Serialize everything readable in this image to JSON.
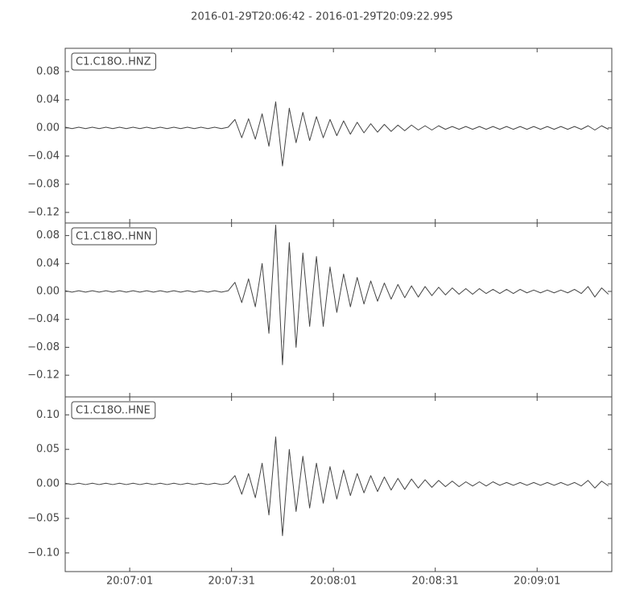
{
  "title": "2016-01-29T20:06:42  -  2016-01-29T20:09:22.995",
  "chart_data": [
    {
      "type": "line",
      "xlim": [
        "20:06:42",
        "20:09:22.995"
      ],
      "ylim": [
        -0.135,
        0.113
      ],
      "yticks": [
        0.08,
        0.04,
        {
          "value": 0,
          "label": "0.00"
        },
        {
          "value": -0.04,
          "label": "−0.04"
        },
        {
          "value": -0.08,
          "label": "−0.08"
        },
        {
          "value": -0.12,
          "label": "−0.12"
        }
      ],
      "x": [
        "20:06:42",
        "20:06:44",
        "20:06:46",
        "20:06:48",
        "20:06:50",
        "20:06:52",
        "20:06:54",
        "20:06:56",
        "20:06:58",
        "20:07:00",
        "20:07:02",
        "20:07:04",
        "20:07:06",
        "20:07:08",
        "20:07:10",
        "20:07:12",
        "20:07:14",
        "20:07:16",
        "20:07:18",
        "20:07:20",
        "20:07:22",
        "20:07:24",
        "20:07:26",
        "20:07:28",
        "20:07:30",
        "20:07:32",
        "20:07:34",
        "20:07:36",
        "20:07:38",
        "20:07:40",
        "20:07:42",
        "20:07:44",
        "20:07:46",
        "20:07:48",
        "20:07:50",
        "20:07:52",
        "20:07:54",
        "20:07:56",
        "20:07:58",
        "20:08:00",
        "20:08:02",
        "20:08:04",
        "20:08:06",
        "20:08:08",
        "20:08:10",
        "20:08:12",
        "20:08:14",
        "20:08:16",
        "20:08:18",
        "20:08:20",
        "20:08:22",
        "20:08:24",
        "20:08:26",
        "20:08:28",
        "20:08:30",
        "20:08:32",
        "20:08:34",
        "20:08:36",
        "20:08:38",
        "20:08:40",
        "20:08:42",
        "20:08:44",
        "20:08:46",
        "20:08:48",
        "20:08:50",
        "20:08:52",
        "20:08:54",
        "20:08:56",
        "20:08:58",
        "20:09:00",
        "20:09:02",
        "20:09:04",
        "20:09:06",
        "20:09:08",
        "20:09:10",
        "20:09:12",
        "20:09:14",
        "20:09:16",
        "20:09:18",
        "20:09:20",
        "20:09:22"
      ],
      "series": [
        {
          "name": "C1.C18O..HNZ",
          "color": "#444444",
          "values": [
            0.001,
            -0.001,
            0.001,
            -0.001,
            0.001,
            -0.001,
            0.001,
            -0.001,
            0.001,
            -0.001,
            0.001,
            -0.001,
            0.001,
            -0.001,
            0.001,
            -0.001,
            0.001,
            -0.001,
            0.001,
            -0.001,
            0.001,
            -0.001,
            0.001,
            -0.001,
            0.001,
            0.012,
            -0.014,
            0.013,
            -0.016,
            0.02,
            -0.026,
            0.037,
            -0.054,
            0.028,
            -0.021,
            0.022,
            -0.018,
            0.016,
            -0.014,
            0.012,
            -0.011,
            0.01,
            -0.009,
            0.008,
            -0.007,
            0.006,
            -0.006,
            0.005,
            -0.005,
            0.004,
            -0.004,
            0.004,
            -0.003,
            0.003,
            -0.003,
            0.003,
            -0.002,
            0.002,
            -0.002,
            0.002,
            -0.002,
            0.002,
            -0.002,
            0.002,
            -0.002,
            0.002,
            -0.002,
            0.002,
            -0.002,
            0.002,
            -0.002,
            0.002,
            -0.002,
            0.002,
            -0.002,
            0.002,
            -0.002,
            0.003,
            -0.003,
            0.003,
            -0.002
          ]
        }
      ]
    },
    {
      "type": "line",
      "xlim": [
        "20:06:42",
        "20:09:22.995"
      ],
      "ylim": [
        -0.151,
        0.098
      ],
      "yticks": [
        0.08,
        0.04,
        {
          "value": 0,
          "label": "0.00"
        },
        {
          "value": -0.04,
          "label": "−0.04"
        },
        {
          "value": -0.08,
          "label": "−0.08"
        },
        {
          "value": -0.12,
          "label": "−0.12"
        }
      ],
      "x": [
        "20:06:42",
        "20:06:44",
        "20:06:46",
        "20:06:48",
        "20:06:50",
        "20:06:52",
        "20:06:54",
        "20:06:56",
        "20:06:58",
        "20:07:00",
        "20:07:02",
        "20:07:04",
        "20:07:06",
        "20:07:08",
        "20:07:10",
        "20:07:12",
        "20:07:14",
        "20:07:16",
        "20:07:18",
        "20:07:20",
        "20:07:22",
        "20:07:24",
        "20:07:26",
        "20:07:28",
        "20:07:30",
        "20:07:32",
        "20:07:34",
        "20:07:36",
        "20:07:38",
        "20:07:40",
        "20:07:42",
        "20:07:44",
        "20:07:46",
        "20:07:48",
        "20:07:50",
        "20:07:52",
        "20:07:54",
        "20:07:56",
        "20:07:58",
        "20:08:00",
        "20:08:02",
        "20:08:04",
        "20:08:06",
        "20:08:08",
        "20:08:10",
        "20:08:12",
        "20:08:14",
        "20:08:16",
        "20:08:18",
        "20:08:20",
        "20:08:22",
        "20:08:24",
        "20:08:26",
        "20:08:28",
        "20:08:30",
        "20:08:32",
        "20:08:34",
        "20:08:36",
        "20:08:38",
        "20:08:40",
        "20:08:42",
        "20:08:44",
        "20:08:46",
        "20:08:48",
        "20:08:50",
        "20:08:52",
        "20:08:54",
        "20:08:56",
        "20:08:58",
        "20:09:00",
        "20:09:02",
        "20:09:04",
        "20:09:06",
        "20:09:08",
        "20:09:10",
        "20:09:12",
        "20:09:14",
        "20:09:16",
        "20:09:18",
        "20:09:20",
        "20:09:22"
      ],
      "series": [
        {
          "name": "C1.C18O..HNN",
          "color": "#444444",
          "values": [
            0.001,
            -0.001,
            0.001,
            -0.001,
            0.001,
            -0.001,
            0.001,
            -0.001,
            0.001,
            -0.001,
            0.001,
            -0.001,
            0.001,
            -0.001,
            0.001,
            -0.001,
            0.001,
            -0.001,
            0.001,
            -0.001,
            0.001,
            -0.001,
            0.001,
            -0.001,
            0.001,
            0.013,
            -0.016,
            0.018,
            -0.022,
            0.04,
            -0.06,
            0.095,
            -0.105,
            0.07,
            -0.08,
            0.055,
            -0.05,
            0.05,
            -0.05,
            0.035,
            -0.03,
            0.025,
            -0.022,
            0.02,
            -0.018,
            0.015,
            -0.014,
            0.012,
            -0.011,
            0.01,
            -0.009,
            0.008,
            -0.008,
            0.007,
            -0.006,
            0.006,
            -0.005,
            0.005,
            -0.004,
            0.004,
            -0.004,
            0.004,
            -0.003,
            0.003,
            -0.003,
            0.003,
            -0.003,
            0.003,
            -0.002,
            0.002,
            -0.002,
            0.002,
            -0.002,
            0.002,
            -0.002,
            0.003,
            -0.003,
            0.007,
            -0.008,
            0.005,
            -0.004
          ]
        }
      ]
    },
    {
      "type": "line",
      "xlim": [
        "20:06:42",
        "20:09:22.995"
      ],
      "ylim": [
        -0.127,
        0.126
      ],
      "yticks": [
        {
          "value": 0.1,
          "label": "0.10"
        },
        0.05,
        {
          "value": 0,
          "label": "0.00"
        },
        {
          "value": -0.05,
          "label": "−0.05"
        },
        {
          "value": -0.1,
          "label": "−0.10"
        }
      ],
      "xticks": [
        "20:07:01",
        "20:07:31",
        "20:08:01",
        "20:08:31",
        "20:09:01"
      ],
      "x": [
        "20:06:42",
        "20:06:44",
        "20:06:46",
        "20:06:48",
        "20:06:50",
        "20:06:52",
        "20:06:54",
        "20:06:56",
        "20:06:58",
        "20:07:00",
        "20:07:02",
        "20:07:04",
        "20:07:06",
        "20:07:08",
        "20:07:10",
        "20:07:12",
        "20:07:14",
        "20:07:16",
        "20:07:18",
        "20:07:20",
        "20:07:22",
        "20:07:24",
        "20:07:26",
        "20:07:28",
        "20:07:30",
        "20:07:32",
        "20:07:34",
        "20:07:36",
        "20:07:38",
        "20:07:40",
        "20:07:42",
        "20:07:44",
        "20:07:46",
        "20:07:48",
        "20:07:50",
        "20:07:52",
        "20:07:54",
        "20:07:56",
        "20:07:58",
        "20:08:00",
        "20:08:02",
        "20:08:04",
        "20:08:06",
        "20:08:08",
        "20:08:10",
        "20:08:12",
        "20:08:14",
        "20:08:16",
        "20:08:18",
        "20:08:20",
        "20:08:22",
        "20:08:24",
        "20:08:26",
        "20:08:28",
        "20:08:30",
        "20:08:32",
        "20:08:34",
        "20:08:36",
        "20:08:38",
        "20:08:40",
        "20:08:42",
        "20:08:44",
        "20:08:46",
        "20:08:48",
        "20:08:50",
        "20:08:52",
        "20:08:54",
        "20:08:56",
        "20:08:58",
        "20:09:00",
        "20:09:02",
        "20:09:04",
        "20:09:06",
        "20:09:08",
        "20:09:10",
        "20:09:12",
        "20:09:14",
        "20:09:16",
        "20:09:18",
        "20:09:20",
        "20:09:22"
      ],
      "series": [
        {
          "name": "C1.C18O..HNE",
          "color": "#444444",
          "values": [
            0.001,
            -0.001,
            0.001,
            -0.001,
            0.001,
            -0.001,
            0.001,
            -0.001,
            0.001,
            -0.001,
            0.001,
            -0.001,
            0.001,
            -0.001,
            0.001,
            -0.001,
            0.001,
            -0.001,
            0.001,
            -0.001,
            0.001,
            -0.001,
            0.001,
            -0.001,
            0.001,
            0.012,
            -0.015,
            0.015,
            -0.02,
            0.03,
            -0.045,
            0.068,
            -0.075,
            0.05,
            -0.04,
            0.04,
            -0.035,
            0.03,
            -0.028,
            0.025,
            -0.022,
            0.02,
            -0.017,
            0.015,
            -0.013,
            0.012,
            -0.011,
            0.01,
            -0.009,
            0.008,
            -0.008,
            0.007,
            -0.006,
            0.006,
            -0.005,
            0.005,
            -0.004,
            0.004,
            -0.004,
            0.003,
            -0.003,
            0.003,
            -0.003,
            0.003,
            -0.002,
            0.002,
            -0.002,
            0.002,
            -0.002,
            0.002,
            -0.002,
            0.002,
            -0.002,
            0.002,
            -0.002,
            0.002,
            -0.003,
            0.005,
            -0.006,
            0.004,
            -0.003
          ]
        }
      ]
    }
  ]
}
